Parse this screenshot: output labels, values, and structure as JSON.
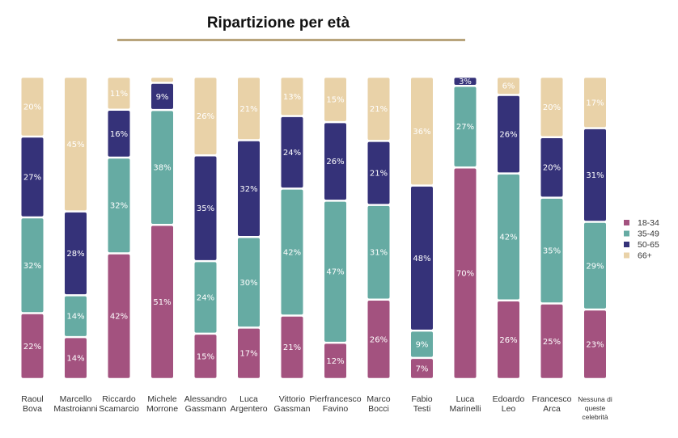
{
  "chart_data": {
    "type": "bar",
    "stacked": true,
    "percent": true,
    "title": "Ripartizione per età",
    "categories": [
      [
        "Raoul",
        "Bova"
      ],
      [
        "Marcello",
        "Mastroianni"
      ],
      [
        "Riccardo",
        "Scamarcio"
      ],
      [
        "Michele",
        "Morrone"
      ],
      [
        "Alessandro",
        "Gassmann"
      ],
      [
        "Luca",
        "Argentero"
      ],
      [
        "Vittorio",
        "Gassman"
      ],
      [
        "Pierfrancesco",
        "Favino"
      ],
      [
        "Marco",
        "Bocci"
      ],
      [
        "Fabio",
        "Testi"
      ],
      [
        "Luca",
        "Marinelli"
      ],
      [
        "Edoardo",
        "Leo"
      ],
      [
        "Francesco",
        "Arca"
      ],
      [
        "Nessuna di",
        "queste",
        "celebrità"
      ]
    ],
    "series": [
      {
        "name": "18-34",
        "color": "#a3527f",
        "values": [
          22,
          14,
          42,
          51,
          15,
          17,
          21,
          12,
          26,
          7,
          70,
          26,
          25,
          23
        ]
      },
      {
        "name": "35-49",
        "color": "#66aba3",
        "values": [
          32,
          14,
          32,
          38,
          24,
          30,
          42,
          47,
          31,
          9,
          27,
          42,
          35,
          29
        ]
      },
      {
        "name": "50-65",
        "color": "#353279",
        "values": [
          27,
          28,
          16,
          9,
          35,
          32,
          24,
          26,
          21,
          48,
          3,
          26,
          20,
          31
        ]
      },
      {
        "name": "66+",
        "color": "#e9d2a8",
        "values": [
          20,
          45,
          11,
          2,
          26,
          21,
          13,
          15,
          21,
          36,
          0,
          6,
          20,
          17
        ]
      }
    ],
    "legend_position": "right",
    "grid": false
  }
}
